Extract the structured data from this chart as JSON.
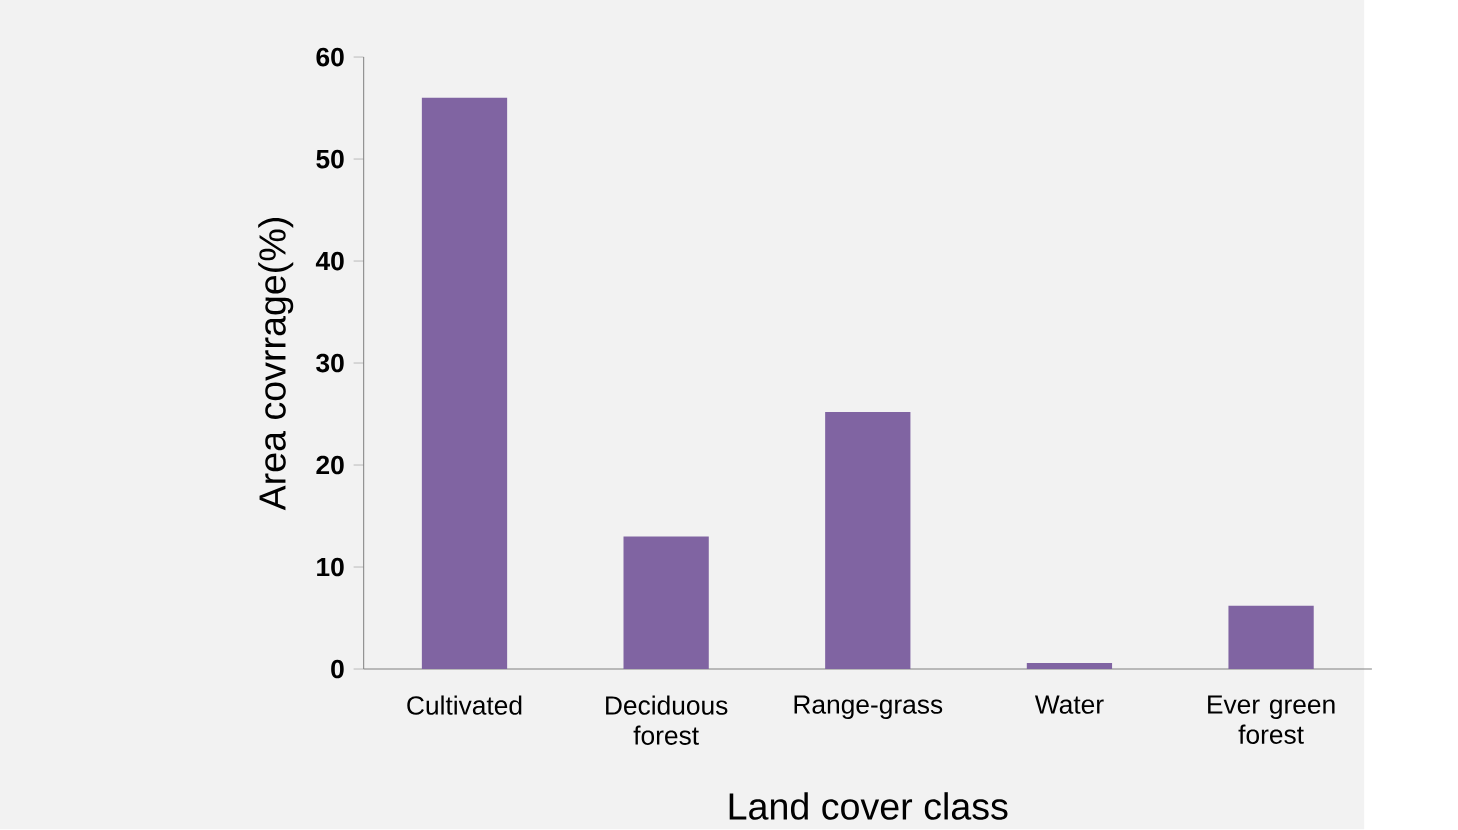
{
  "chart_data": {
    "type": "bar",
    "xlabel": "Land cover class",
    "ylabel": "Area covrrage(%)",
    "categories": [
      "Cultivated",
      "Deciduous forest",
      "Range-grass",
      "Water",
      "Ever green forest"
    ],
    "values": [
      56,
      13,
      25.2,
      0.6,
      6.2
    ],
    "color": "#8064a2",
    "ylim": [
      0,
      60
    ],
    "yticks": [
      0,
      10,
      20,
      30,
      40,
      50,
      60
    ],
    "grid": false
  }
}
